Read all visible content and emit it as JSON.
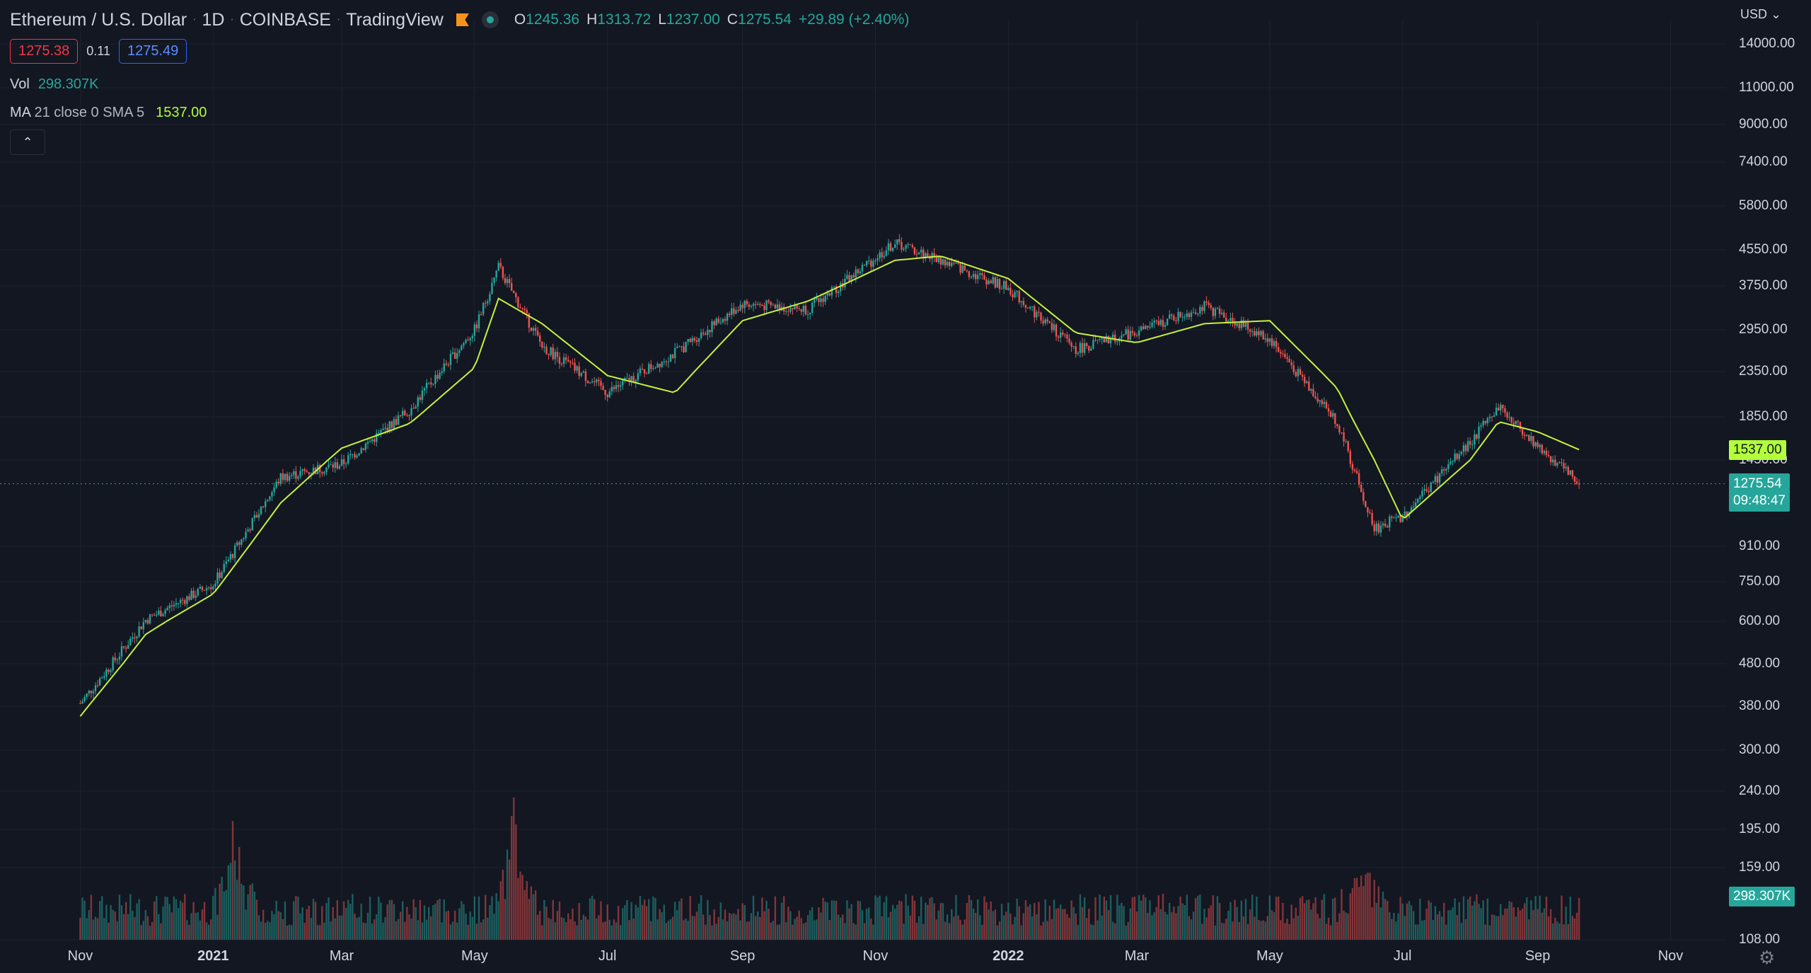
{
  "header": {
    "symbol": "Ethereum / U.S. Dollar",
    "interval": "1D",
    "exchange": "COINBASE",
    "platform": "TradingView",
    "flag_icon": "flag-icon",
    "status_icon": "market-status-icon",
    "ohlc": {
      "o_label": "O",
      "o": "1245.36",
      "h_label": "H",
      "h": "1313.72",
      "l_label": "L",
      "l": "1237.00",
      "c_label": "C",
      "c": "1275.54",
      "change": "+29.89 (+2.40%)"
    }
  },
  "quote": {
    "bid": "1275.38",
    "spread": "0.11",
    "ask": "1275.49"
  },
  "indicators": {
    "vol_label": "Vol",
    "vol_value": "298.307K",
    "ma_name": "MA",
    "ma_params": "21 close 0 SMA 5",
    "ma_value": "1537.00"
  },
  "collapse_icon": "chevron-up-icon",
  "axis": {
    "currency": "USD",
    "price_ticks": [
      "14000.00",
      "11000.00",
      "9000.00",
      "7400.00",
      "5800.00",
      "4550.00",
      "3750.00",
      "2950.00",
      "2350.00",
      "1850.00",
      "1450.00",
      "910.00",
      "750.00",
      "600.00",
      "480.00",
      "380.00",
      "300.00",
      "240.00",
      "195.00",
      "159.00",
      "108.00"
    ],
    "time_labels": [
      "Nov",
      "2021",
      "Mar",
      "May",
      "Jul",
      "Sep",
      "Nov",
      "2022",
      "Mar",
      "May",
      "Jul",
      "Sep",
      "Nov"
    ],
    "settings_icon": "gear-icon"
  },
  "tags": {
    "ma_price": "1537.00",
    "last_price": "1275.54",
    "countdown": "09:48:47",
    "volume": "298.307K"
  },
  "colors": {
    "up": "#26a69a",
    "down": "#ef5350",
    "ma": "#c6f13d",
    "background": "#131722",
    "grid": "#1e222d"
  },
  "chart_data": {
    "type": "candlestick",
    "title": "Ethereum / U.S. Dollar",
    "scale": "log",
    "xlabel": "",
    "ylabel": "",
    "x": [
      "2020-11-01",
      "2020-12-01",
      "2021-01-01",
      "2021-02-01",
      "2021-03-01",
      "2021-04-01",
      "2021-05-01",
      "2021-05-12",
      "2021-06-01",
      "2021-07-01",
      "2021-08-01",
      "2021-09-01",
      "2021-10-01",
      "2021-11-10",
      "2021-12-01",
      "2022-01-01",
      "2022-02-01",
      "2022-03-01",
      "2022-04-01",
      "2022-05-01",
      "2022-06-01",
      "2022-06-18",
      "2022-07-01",
      "2022-08-01",
      "2022-08-14",
      "2022-09-01",
      "2022-09-20"
    ],
    "series": [
      {
        "name": "price",
        "values": [
          386,
          605,
          740,
          1320,
          1420,
          1920,
          2950,
          4150,
          2700,
          2100,
          2600,
          3400,
          3300,
          4720,
          4300,
          3700,
          2650,
          2920,
          3350,
          2800,
          1800,
          1000,
          1070,
          1600,
          1960,
          1570,
          1275.54
        ]
      },
      {
        "name": "MA 21 close 0 SMA 5",
        "values": [
          360,
          560,
          700,
          1150,
          1550,
          1780,
          2400,
          3500,
          3050,
          2300,
          2100,
          3100,
          3450,
          4300,
          4400,
          3900,
          2900,
          2750,
          3050,
          3100,
          2150,
          1450,
          1050,
          1450,
          1800,
          1700,
          1537.0
        ]
      }
    ],
    "volume": {
      "name": "Vol",
      "last": "298.307K",
      "x": [
        "2021-01-11",
        "2021-05-19",
        "2022-06-13"
      ],
      "values": [
        160,
        180,
        100
      ]
    },
    "last_price": 1275.54,
    "ylim": [
      108,
      14000
    ]
  }
}
